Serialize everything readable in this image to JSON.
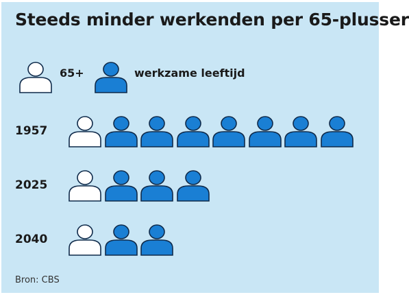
{
  "title": "Steeds minder werkenden per 65-plusser",
  "legend": {
    "senior_label": "65+",
    "worker_label": "werkzame leeftijd"
  },
  "colors": {
    "background": "#c9e6f5",
    "worker_fill": "#1a7fd4",
    "senior_fill": "#ffffff",
    "outline": "#0f2a4a"
  },
  "rows": [
    {
      "year": "1957",
      "seniors": 1,
      "workers": 7
    },
    {
      "year": "2025",
      "seniors": 1,
      "workers": 3
    },
    {
      "year": "2040",
      "seniors": 1,
      "workers": 2
    }
  ],
  "source": "Bron: CBS"
}
